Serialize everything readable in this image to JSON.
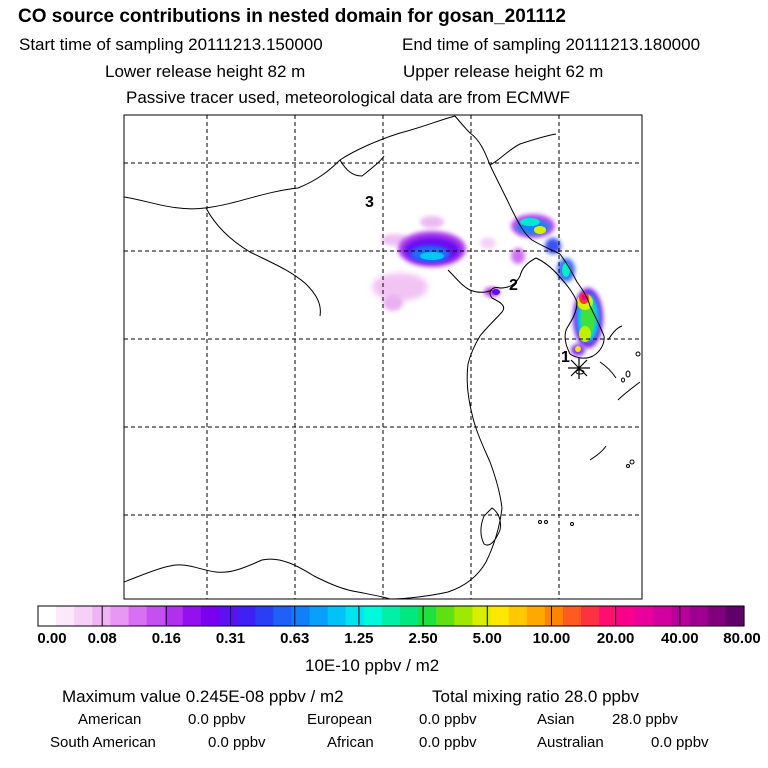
{
  "header": {
    "title": "CO  source contributions in nested domain for gosan_201112",
    "start_label": "Start time of sampling 20111213.150000",
    "end_label": "End time of sampling 20111213.180000",
    "lower_label": "Lower release height   82 m",
    "upper_label": "Upper release height   62 m",
    "note": "Passive tracer used, meteorological data are from ECMWF"
  },
  "map": {
    "markers": [
      {
        "label": "1",
        "name": "site-1"
      },
      {
        "label": "2",
        "name": "site-2"
      },
      {
        "label": "3",
        "name": "site-3"
      }
    ],
    "receptor_icon": "asterisk-icon"
  },
  "colorbar": {
    "ticks": [
      "0.00",
      "0.08",
      "0.16",
      "0.31",
      "0.63",
      "1.25",
      "2.50",
      "5.00",
      "10.00",
      "20.00",
      "40.00",
      "80.00"
    ],
    "units": "10E-10 ppbv / m2",
    "colors": [
      "#ffffff",
      "#fbe8fb",
      "#f6d0f6",
      "#f0b4f4",
      "#e898f4",
      "#d870f2",
      "#c550ef",
      "#b030ee",
      "#9410ee",
      "#7a00f0",
      "#5e10f2",
      "#4020f4",
      "#2a3ef6",
      "#1e60f8",
      "#1080fa",
      "#08a0fa",
      "#00c4f8",
      "#00e4f0",
      "#00f8dc",
      "#00f0a8",
      "#00e880",
      "#20e040",
      "#60e010",
      "#a0e800",
      "#d8f000",
      "#ffe800",
      "#ffc800",
      "#ffa800",
      "#ff8400",
      "#ff5a20",
      "#ff3040",
      "#ff1070",
      "#f8008c",
      "#e8009c",
      "#d0009c",
      "#b8009a",
      "#a00090",
      "#80007c",
      "#600068"
    ]
  },
  "stats": {
    "max_label": "Maximum value  0.245E-08 ppbv / m2",
    "total_label": "Total mixing ratio       28.0 ppbv",
    "regions": [
      {
        "name": "American",
        "value": "0.0 ppbv"
      },
      {
        "name": "European",
        "value": "0.0 ppbv"
      },
      {
        "name": "Asian",
        "value": "28.0 ppbv"
      },
      {
        "name": "South American",
        "value": "0.0 ppbv"
      },
      {
        "name": "African",
        "value": "0.0 ppbv"
      },
      {
        "name": "Australian",
        "value": "0.0 ppbv"
      }
    ]
  }
}
